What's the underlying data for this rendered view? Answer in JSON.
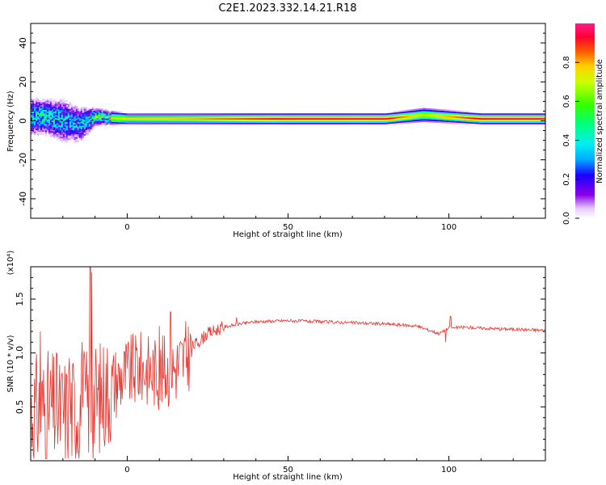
{
  "title": "C2E1.2023.332.14.21.R18",
  "chart_data": [
    {
      "type": "heatmap",
      "xlabel": "Height of straight line (km)",
      "ylabel": "Frequency (Hz)",
      "xlim": [
        -30,
        130
      ],
      "ylim": [
        -50,
        50
      ],
      "xticks": [
        0,
        50,
        100
      ],
      "yticks": [
        -40,
        -20,
        0,
        20,
        40
      ],
      "colorbar": {
        "label": "Normalized spectral amplitude",
        "range": [
          0,
          1
        ],
        "ticks": [
          "0.0",
          "0.2",
          "0.4",
          "0.6",
          "0.8"
        ]
      },
      "description_points": [
        {
          "x": -25,
          "y_center": 2,
          "spread": 10,
          "amp": 0.45
        },
        {
          "x": -20,
          "y_center": 0,
          "spread": 12,
          "amp": 0.4
        },
        {
          "x": -15,
          "y_center": -2,
          "spread": 10,
          "amp": 0.35
        },
        {
          "x": -10,
          "y_center": 2,
          "spread": 4,
          "amp": 0.6
        },
        {
          "x": 0,
          "y_center": 1,
          "spread": 2,
          "amp": 0.75
        },
        {
          "x": 20,
          "y_center": 1,
          "spread": 2,
          "amp": 0.8
        },
        {
          "x": 50,
          "y_center": 1,
          "spread": 2,
          "amp": 0.95
        },
        {
          "x": 80,
          "y_center": 1,
          "spread": 2,
          "amp": 0.95
        },
        {
          "x": 92,
          "y_center": 3,
          "spread": 3,
          "amp": 0.7
        },
        {
          "x": 110,
          "y_center": 1,
          "spread": 2,
          "amp": 0.95
        },
        {
          "x": 130,
          "y_center": 1,
          "spread": 2,
          "amp": 0.95
        }
      ]
    },
    {
      "type": "line",
      "xlabel": "Height of straight line (km)",
      "ylabel": "SNR (10 * v/v)",
      "y_multiplier": "(x10⁴)",
      "xlim": [
        -30,
        130
      ],
      "ylim": [
        0,
        1.8
      ],
      "xticks": [
        0,
        50,
        100
      ],
      "yticks": [
        "0.5",
        "1.0",
        "1.5"
      ],
      "series": [
        {
          "color": "#e8332d",
          "envelope": [
            {
              "x": -30,
              "y": 0.5
            },
            {
              "x": -25,
              "y": 0.55
            },
            {
              "x": -20,
              "y": 0.5
            },
            {
              "x": -15,
              "y": 0.55
            },
            {
              "x": -12,
              "y": 0.6
            },
            {
              "x": -10,
              "y": 0.6
            },
            {
              "x": -5,
              "y": 0.75
            },
            {
              "x": 0,
              "y": 0.85
            },
            {
              "x": 5,
              "y": 0.9
            },
            {
              "x": 10,
              "y": 0.85
            },
            {
              "x": 15,
              "y": 0.9
            },
            {
              "x": 20,
              "y": 1.05
            },
            {
              "x": 25,
              "y": 1.18
            },
            {
              "x": 30,
              "y": 1.24
            },
            {
              "x": 35,
              "y": 1.27
            },
            {
              "x": 40,
              "y": 1.29
            },
            {
              "x": 50,
              "y": 1.3
            },
            {
              "x": 60,
              "y": 1.29
            },
            {
              "x": 70,
              "y": 1.28
            },
            {
              "x": 80,
              "y": 1.27
            },
            {
              "x": 90,
              "y": 1.25
            },
            {
              "x": 97,
              "y": 1.18
            },
            {
              "x": 100,
              "y": 1.23
            },
            {
              "x": 105,
              "y": 1.24
            },
            {
              "x": 110,
              "y": 1.23
            },
            {
              "x": 120,
              "y": 1.22
            },
            {
              "x": 130,
              "y": 1.21
            }
          ],
          "spikes": [
            {
              "x": -27,
              "y": 1.2
            },
            {
              "x": -22,
              "y": 1.0
            },
            {
              "x": -18,
              "y": 0.95
            },
            {
              "x": -14,
              "y": 1.1
            },
            {
              "x": -11.5,
              "y": 1.8
            },
            {
              "x": -11,
              "y": 1.75
            },
            {
              "x": 3,
              "y": 1.05
            },
            {
              "x": 13.5,
              "y": 1.38
            },
            {
              "x": 10,
              "y": 1.25
            },
            {
              "x": 34,
              "y": 1.33
            },
            {
              "x": 100.5,
              "y": 1.34
            },
            {
              "x": 99,
              "y": 1.1
            }
          ]
        }
      ]
    }
  ]
}
